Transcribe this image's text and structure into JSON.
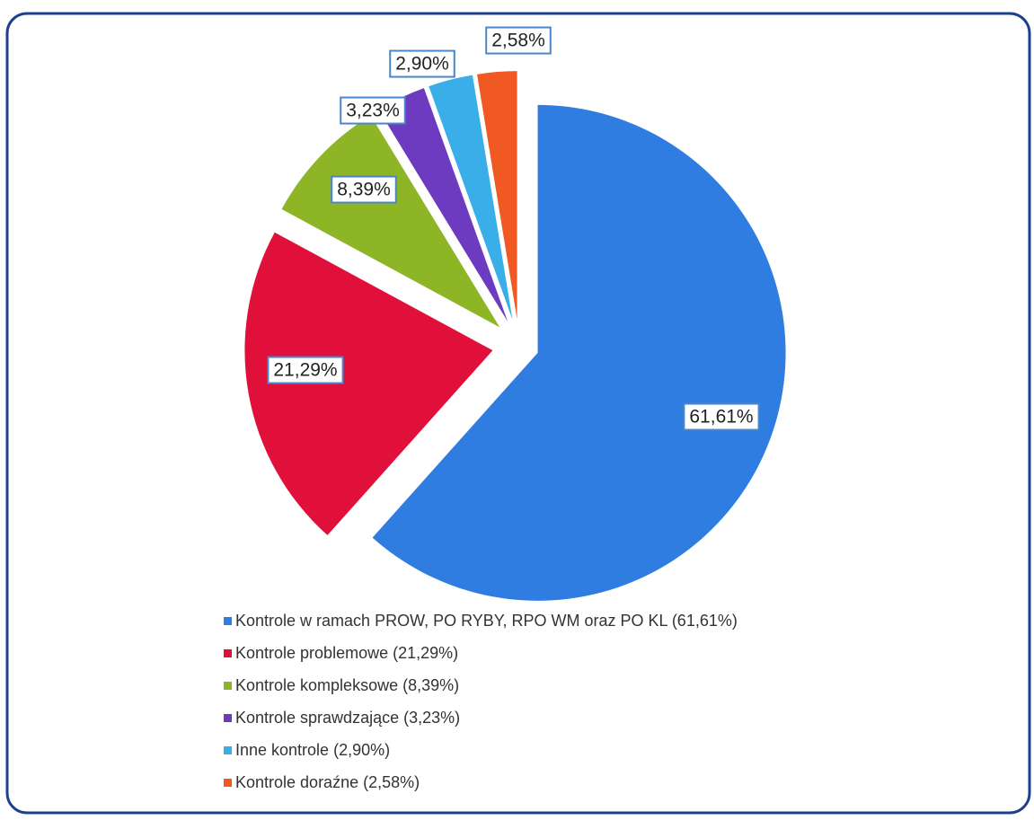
{
  "chart_data": {
    "type": "pie",
    "categories": [
      "Kontrole w ramach PROW, PO RYBY, RPO WM oraz PO KL (61,61%)",
      "Kontrole problemowe (21,29%)",
      "Kontrole kompleksowe (8,39%)",
      "Kontrole sprawdzające (3,23%)",
      "Inne kontrole (2,90%)",
      "Kontrole doraźne (2,58%)"
    ],
    "values": [
      61.61,
      21.29,
      8.39,
      3.23,
      2.9,
      2.58
    ],
    "value_labels": [
      "61,61%",
      "21,29%",
      "8,39%",
      "3,23%",
      "2,90%",
      "2,58%"
    ],
    "colors": [
      "#2f7de1",
      "#e0103a",
      "#8db526",
      "#6d3bbf",
      "#3aaee8",
      "#f05a22"
    ],
    "legend": "bottom"
  }
}
